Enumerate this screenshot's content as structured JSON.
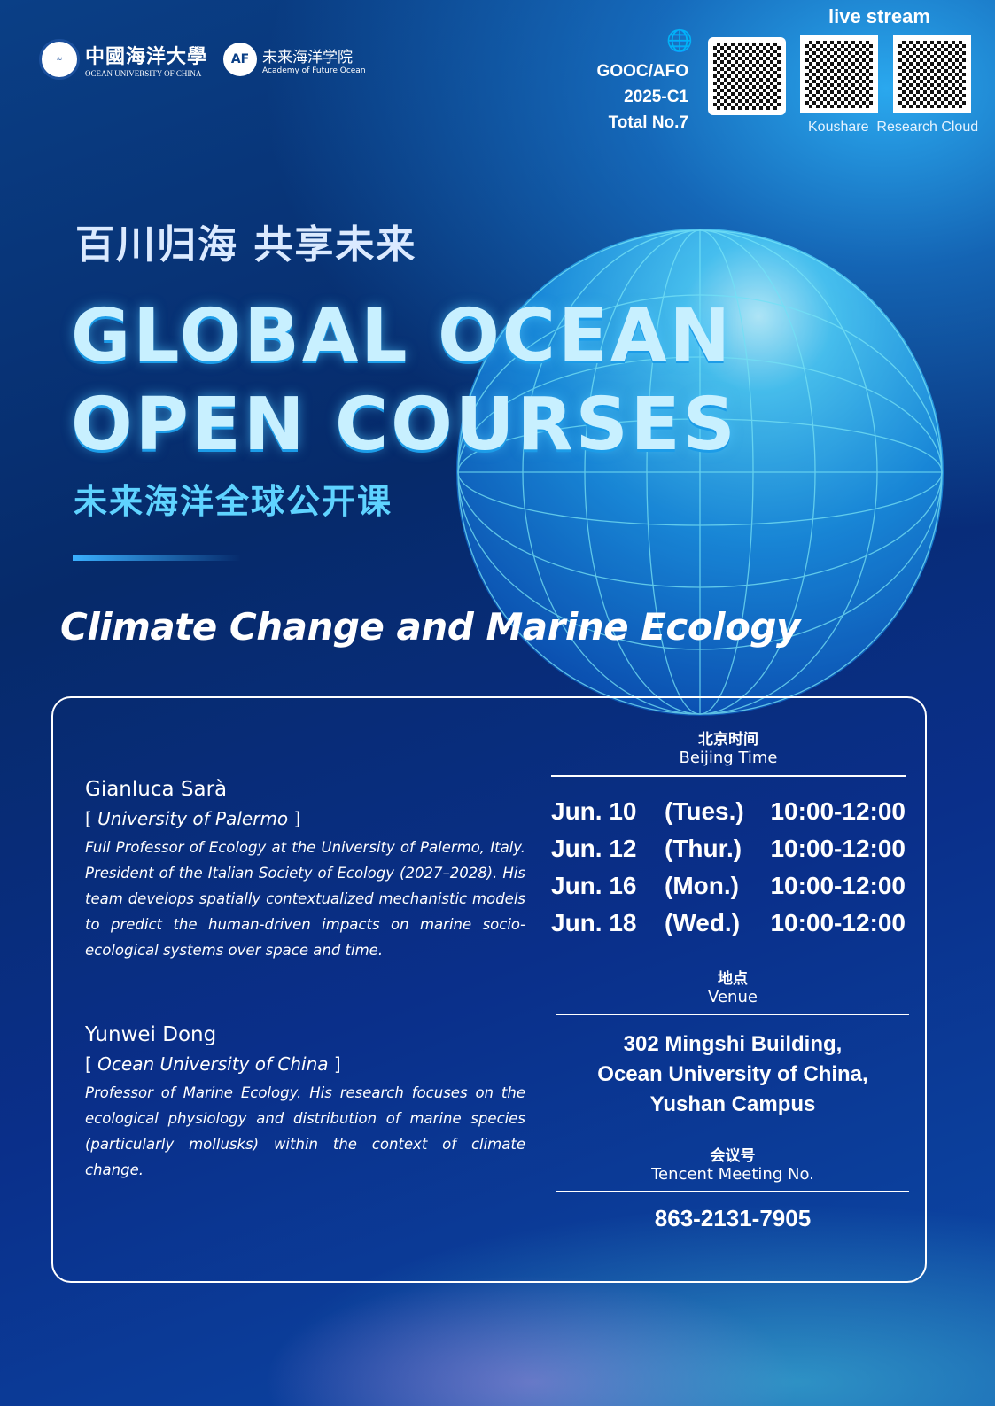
{
  "header": {
    "logo_ouc_cn": "中國海洋大學",
    "logo_ouc_en": "OCEAN UNIVERSITY OF CHINA",
    "logo_afo_cn": "未来海洋学院",
    "logo_afo_en": "Academy of Future Ocean",
    "logo_afo_mark": "AF",
    "code_lines": [
      "GOOC/AFO",
      "2025-C1",
      "Total No.7"
    ],
    "live_stream": "live stream",
    "qr_labels": [
      "Koushare",
      "Research Cloud"
    ]
  },
  "hero": {
    "slogan": "百川归海 共享未来",
    "title_lines": [
      "GLOBAL OCEAN",
      "OPEN COURSES"
    ],
    "subtitle_cn": "未来海洋全球公开课",
    "topic": "Climate Change and Marine Ecology"
  },
  "speakers": [
    {
      "name": "Gianluca Sarà",
      "affiliation": "University of Palermo",
      "bio": "Full Professor of Ecology at the University of Palermo, Italy. President of the Italian Society of Ecology (2027–2028). His team develops spatially contextualized mechanistic models to predict the human-driven impacts on marine socio-ecological systems over space and time."
    },
    {
      "name": "Yunwei Dong",
      "affiliation": "Ocean University of China",
      "bio": "Professor of Marine Ecology. His research focuses on the ecological physiology and distribution of marine species (particularly mollusks) within the context of climate change."
    }
  ],
  "schedule": {
    "header_cn": "北京时间",
    "header_en": "Beijing Time",
    "rows": [
      {
        "date": "Jun. 10",
        "day": "(Tues.)",
        "time": "10:00-12:00"
      },
      {
        "date": "Jun. 12",
        "day": "(Thur.)",
        "time": "10:00-12:00"
      },
      {
        "date": "Jun. 16",
        "day": "(Mon.)",
        "time": "10:00-12:00"
      },
      {
        "date": "Jun. 18",
        "day": "(Wed.)",
        "time": "10:00-12:00"
      }
    ]
  },
  "venue": {
    "header_cn": "地点",
    "header_en": "Venue",
    "lines": [
      "302 Mingshi Building,",
      "Ocean University of China,",
      "Yushan Campus"
    ]
  },
  "meeting": {
    "header_cn": "会议号",
    "header_en": "Tencent Meeting No.",
    "number": "863-2131-7905"
  }
}
